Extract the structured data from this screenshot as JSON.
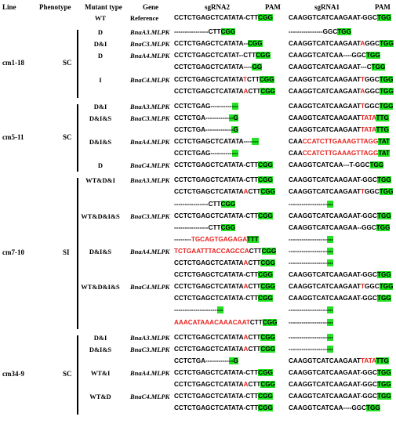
{
  "headers": {
    "line": "Line",
    "phenotype": "Phenotype",
    "mutant_type": "Mutant type",
    "gene": "Gene",
    "reference": "Reference",
    "sgrna2": "sgRNA2",
    "sgrna1": "sgRNA1",
    "pam1": "PAM",
    "pam2": "PAM"
  },
  "wt_row": {
    "mutant": "WT",
    "seq2": [
      [
        "n",
        "CCTCTGAGCTCATATA-CTT"
      ],
      [
        "p",
        "CGG"
      ]
    ],
    "seq1": [
      [
        "n",
        "CAAGGTCATCAAGAAT-GGC"
      ],
      [
        "p",
        "TGG"
      ]
    ]
  },
  "groups": [
    {
      "line": "cm1-18",
      "phenotype": "SC",
      "rows": [
        {
          "mutant": "D",
          "gene": "BnaA3.MLPK",
          "seq2": [
            [
              "n",
              "----------------CTT"
            ],
            [
              "p",
              "CGG"
            ]
          ],
          "seq1": [
            [
              "n",
              "----------------GGC"
            ],
            [
              "p",
              "TGG"
            ]
          ]
        },
        {
          "mutant": "D&I",
          "gene": "BnaC3.MLPK",
          "seq2": [
            [
              "n",
              "CCTCTGAGCTCATATA--"
            ],
            [
              "p",
              "CGG"
            ]
          ],
          "seq1": [
            [
              "n",
              "CAAGGTCATCAAGAAT"
            ],
            [
              "r",
              "A"
            ],
            [
              "n",
              "GGC"
            ],
            [
              "p",
              "TGG"
            ]
          ]
        },
        {
          "mutant": "D",
          "gene": "BnaA4.MLPK",
          "seq2": [
            [
              "n",
              "CCTCTGAGCTCATAT--CTT"
            ],
            [
              "p",
              "CGG"
            ]
          ],
          "seq1": [
            [
              "n",
              "CAAGGTCATCAA----GGC"
            ],
            [
              "p",
              "TGG"
            ]
          ]
        },
        {
          "mutant": "",
          "gene": "",
          "seq2": [
            [
              "n",
              "CCTCTGAGCTCATATA----"
            ],
            [
              "p",
              "GG"
            ]
          ],
          "seq1": [
            [
              "n",
              "CAAGGTCATCAAGAAT---C"
            ],
            [
              "p",
              "TGG"
            ]
          ]
        },
        {
          "mutant": "I",
          "gene": "BnaC4.MLPK",
          "seq2": [
            [
              "n",
              "CCTCTGAGCTCATATA"
            ],
            [
              "r",
              "T"
            ],
            [
              "n",
              "CTT"
            ],
            [
              "p",
              "CGG"
            ]
          ],
          "seq1": [
            [
              "n",
              "CAAGGTCATCAAGAAT"
            ],
            [
              "r",
              "T"
            ],
            [
              "n",
              "GGC"
            ],
            [
              "p",
              "TGG"
            ]
          ]
        },
        {
          "mutant": "",
          "gene": "",
          "seq2": [
            [
              "n",
              "CCTCTGAGCTCATATA"
            ],
            [
              "r",
              "A"
            ],
            [
              "n",
              "CTT"
            ],
            [
              "p",
              "CGG"
            ]
          ],
          "seq1": [
            [
              "n",
              "CAAGGTCATCAAGAAT"
            ],
            [
              "r",
              "A"
            ],
            [
              "n",
              "GGC"
            ],
            [
              "p",
              "TGG"
            ]
          ]
        }
      ]
    },
    {
      "line": "cm5-11",
      "phenotype": "SC",
      "rows": [
        {
          "mutant": "D&I",
          "gene": "BnaA3.MLPK",
          "seq2": [
            [
              "n",
              "CCTCTGAG----------"
            ],
            [
              "p",
              "---"
            ]
          ],
          "seq1": [
            [
              "n",
              "CAAGGTCATCAAGAAT"
            ],
            [
              "r",
              "T"
            ],
            [
              "n",
              "GGC"
            ],
            [
              "p",
              "TGG"
            ]
          ]
        },
        {
          "mutant": "D&I&S",
          "gene": "BnaC3.MLPK",
          "seq2": [
            [
              "n",
              "CCTCTGA-----------"
            ],
            [
              "p",
              "--G"
            ]
          ],
          "seq1": [
            [
              "n",
              "CAAGGTCATCAAGAAT"
            ],
            [
              "r",
              "TATA"
            ],
            [
              "p",
              "TTG"
            ]
          ]
        },
        {
          "mutant": "",
          "gene": "",
          "seq2": [
            [
              "n",
              "CCTCTGA------------"
            ],
            [
              "p",
              "-G"
            ]
          ],
          "seq1": [
            [
              "n",
              "CAAGGTCATCAAGAAT"
            ],
            [
              "r",
              "TATA"
            ],
            [
              "p",
              "TTG"
            ]
          ]
        },
        {
          "mutant": "D&I&S",
          "gene": "BnaA4.MLPK",
          "seq2": [
            [
              "n",
              "CCTCTGAGCTCATATA----"
            ],
            [
              "p",
              "---"
            ]
          ],
          "seq1": [
            [
              "n",
              "CAA"
            ],
            [
              "r",
              "CCATCTTGAAAGTTAGG"
            ],
            [
              "p",
              "TAT"
            ]
          ]
        },
        {
          "mutant": "",
          "gene": "",
          "seq2": [
            [
              "n",
              "CCTCTGAG----------"
            ],
            [
              "p",
              "---"
            ]
          ],
          "seq1": [
            [
              "n",
              "CAA"
            ],
            [
              "r",
              "CCATCTTGAAAGTTAGG"
            ],
            [
              "p",
              "TAT"
            ]
          ]
        },
        {
          "mutant": "D",
          "gene": "BnaC4.MLPK",
          "seq2": [
            [
              "n",
              "CCTCTGAGCTCATATA-CTT"
            ],
            [
              "p",
              "CGG"
            ]
          ],
          "seq1": [
            [
              "n",
              "CAAGGTCATCAA---T-GGC"
            ],
            [
              "p",
              "TGG"
            ]
          ]
        }
      ]
    },
    {
      "line": "cm7-10",
      "phenotype": "SI",
      "rows": [
        {
          "mutant": "WT&D&I",
          "gene": "BnaA3.MLPK",
          "seq2": [
            [
              "n",
              "CCTCTGAGCTCATATA-CTT"
            ],
            [
              "p",
              "CGG"
            ]
          ],
          "seq1": [
            [
              "n",
              "CAAGGTCATCAAGAAT-GGC"
            ],
            [
              "p",
              "TGG"
            ]
          ]
        },
        {
          "mutant": "",
          "gene": "",
          "seq2": [
            [
              "n",
              "CCTCTGAGCTCATATA"
            ],
            [
              "r",
              "A"
            ],
            [
              "n",
              "CTT"
            ],
            [
              "p",
              "CGG"
            ]
          ],
          "seq1": [
            [
              "n",
              "CAAGGTCATCAAGAAT"
            ],
            [
              "r",
              "T"
            ],
            [
              "n",
              "GGC"
            ],
            [
              "p",
              "TGG"
            ]
          ]
        },
        {
          "mutant": "",
          "gene": "",
          "seq2": [
            [
              "n",
              "----------------CTT"
            ],
            [
              "p",
              "CGG"
            ]
          ],
          "seq1": [
            [
              "n",
              "------------------"
            ],
            [
              "p",
              "---"
            ]
          ]
        },
        {
          "mutant": "WT&D&I&S",
          "gene": "BnaC3.MLPK",
          "seq2": [
            [
              "n",
              "CCTCTGAGCTCATATA-CTT"
            ],
            [
              "p",
              "CGG"
            ]
          ],
          "seq1": [
            [
              "n",
              "CAAGGTCATCAAGAAT-GGC"
            ],
            [
              "p",
              "TGG"
            ]
          ]
        },
        {
          "mutant": "",
          "gene": "",
          "seq2": [
            [
              "n",
              "----------------CTT"
            ],
            [
              "p",
              "CGG"
            ]
          ],
          "seq1": [
            [
              "n",
              "CAAGGTCATCAAGAA--GGC"
            ],
            [
              "p",
              "TGG"
            ]
          ]
        },
        {
          "mutant": "",
          "gene": "",
          "seq2": [
            [
              "n",
              "--------"
            ],
            [
              "r",
              "TGCAGTGAGAGA"
            ],
            [
              "p",
              "TTT"
            ]
          ],
          "seq1": [
            [
              "n",
              "------------------"
            ],
            [
              "p",
              "---"
            ]
          ]
        },
        {
          "mutant": "D&I&S",
          "gene": "BnaA4.MLPK",
          "seq2": [
            [
              "r",
              "TCTGAATTTACCAGCCA"
            ],
            [
              "n",
              "CTT"
            ],
            [
              "p",
              "CGG"
            ]
          ],
          "seq1": [
            [
              "n",
              "------------------"
            ],
            [
              "p",
              "---"
            ]
          ]
        },
        {
          "mutant": "",
          "gene": "",
          "seq2": [
            [
              "n",
              "CCTCTGAGCTCATATA"
            ],
            [
              "r",
              "A"
            ],
            [
              "n",
              "CTT"
            ],
            [
              "p",
              "CGG"
            ]
          ],
          "seq1": [
            [
              "n",
              "------------------"
            ],
            [
              "p",
              "---"
            ]
          ]
        },
        {
          "mutant": "",
          "gene": "",
          "seq2": [
            [
              "n",
              "CCTCTGAGCTCATATA-CTT"
            ],
            [
              "p",
              "CGG"
            ]
          ],
          "seq1": [
            [
              "n",
              "CAAGGTCATCAAGAAT-GGC"
            ],
            [
              "p",
              "TGG"
            ]
          ]
        },
        {
          "mutant": "WT&D&I&S",
          "gene": "BnaC4.MLPK",
          "seq2": [
            [
              "n",
              "CCTCTGAGCTCATATA"
            ],
            [
              "r",
              "A"
            ],
            [
              "n",
              "CTT"
            ],
            [
              "p",
              "CGG"
            ]
          ],
          "seq1": [
            [
              "n",
              "CAAGGTCATCAAGAAT"
            ],
            [
              "r",
              "T"
            ],
            [
              "n",
              "GGC"
            ],
            [
              "p",
              "TGG"
            ]
          ]
        },
        {
          "mutant": "",
          "gene": "",
          "seq2": [
            [
              "n",
              "CCTCTGAGCTCATATA-CTT"
            ],
            [
              "p",
              "CGG"
            ]
          ],
          "seq1": [
            [
              "n",
              "CAAGGTCATCAAGAAT-GGC"
            ],
            [
              "p",
              "TGG"
            ]
          ]
        },
        {
          "mutant": "",
          "gene": "",
          "seq2": [
            [
              "n",
              "--------------------"
            ],
            [
              "p",
              "---"
            ]
          ],
          "seq1": [
            [
              "n",
              "------------------"
            ],
            [
              "p",
              "---"
            ]
          ]
        },
        {
          "mutant": "",
          "gene": "",
          "seq2": [
            [
              "r",
              "AAACATAAACAAACAAT"
            ],
            [
              "n",
              "CTT"
            ],
            [
              "p",
              "CGG"
            ]
          ],
          "seq1": [
            [
              "n",
              "------------------"
            ],
            [
              "p",
              "---"
            ]
          ]
        }
      ]
    },
    {
      "line": "cm34-9",
      "phenotype": "SC",
      "rows": [
        {
          "mutant": "D&I",
          "gene": "BnaA3.MLPK",
          "seq2": [
            [
              "n",
              "CCTCTGAGCTCATATA"
            ],
            [
              "r",
              "A"
            ],
            [
              "n",
              "CTT"
            ],
            [
              "p",
              "CGG"
            ]
          ],
          "seq1": [
            [
              "n",
              "------------------"
            ],
            [
              "p",
              "---"
            ]
          ]
        },
        {
          "mutant": "D&I&S",
          "gene": "BnaC3.MLPK",
          "seq2": [
            [
              "n",
              "CCTCTGAGCTCATATA"
            ],
            [
              "r",
              "A"
            ],
            [
              "n",
              "CTT"
            ],
            [
              "p",
              "CGG"
            ]
          ],
          "seq1": [
            [
              "n",
              "------------------"
            ],
            [
              "p",
              "---"
            ]
          ]
        },
        {
          "mutant": "",
          "gene": "",
          "seq2": [
            [
              "n",
              "CCTCTGA-----------"
            ],
            [
              "p",
              "--G"
            ]
          ],
          "seq1": [
            [
              "n",
              "CAAGGTCATCAAGAAT"
            ],
            [
              "r",
              "TATA"
            ],
            [
              "p",
              "TTG"
            ]
          ]
        },
        {
          "mutant": "WT&I",
          "gene": "BnaA4.MLPK",
          "seq2": [
            [
              "n",
              "CCTCTGAGCTCATATA-CTT"
            ],
            [
              "p",
              "CGG"
            ]
          ],
          "seq1": [
            [
              "n",
              "CAAGGTCATCAAGAAT-GGC"
            ],
            [
              "p",
              "TGG"
            ]
          ]
        },
        {
          "mutant": "",
          "gene": "",
          "seq2": [
            [
              "n",
              "CCTCTGAGCTCATATA"
            ],
            [
              "r",
              "A"
            ],
            [
              "n",
              "CTT"
            ],
            [
              "p",
              "CGG"
            ]
          ],
          "seq1": [
            [
              "n",
              "CAAGGTCATCAAGAAT-GGC"
            ],
            [
              "p",
              "TGG"
            ]
          ]
        },
        {
          "mutant": "WT&D",
          "gene": "BnaC4.MLPK",
          "seq2": [
            [
              "n",
              "CCTCTGAGCTCATATA-CTT"
            ],
            [
              "p",
              "CGG"
            ]
          ],
          "seq1": [
            [
              "n",
              "CAAGGTCATCAAGAAT-GGC"
            ],
            [
              "p",
              "TGG"
            ]
          ]
        },
        {
          "mutant": "",
          "gene": "",
          "seq2": [
            [
              "n",
              "CCTCTGAGCTCATATA-CTT"
            ],
            [
              "p",
              "CGG"
            ]
          ],
          "seq1": [
            [
              "n",
              "CAAGGTCATCAA----GGC"
            ],
            [
              "p",
              "TGG"
            ]
          ]
        }
      ]
    }
  ],
  "colors": {
    "insertion_red": "#e8221f",
    "pam_green": "#22e022"
  }
}
